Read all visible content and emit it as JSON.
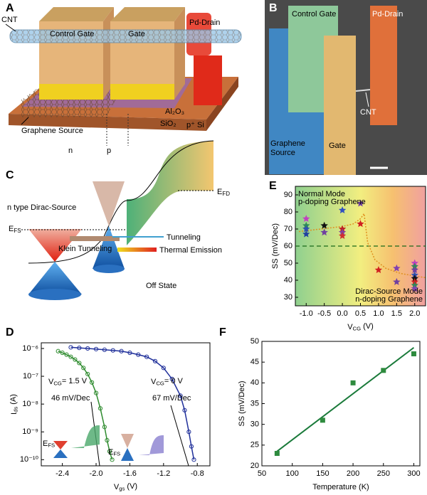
{
  "panel_letters": [
    "A",
    "B",
    "C",
    "D",
    "E",
    "F"
  ],
  "device_schematic": {
    "control_gate": "Control Gate",
    "gate": "Gate",
    "pd_drain": "Pd-Drain",
    "cnt": "CNT",
    "graphene_source": "Graphene Source",
    "al2o3": "Al₂O₃",
    "sio2": "SiO₂",
    "si": "p⁺ Si",
    "n": "n",
    "p": "p"
  },
  "sem_image": {
    "control_gate": "Control Gate",
    "pd_drain": "Pd-Drain",
    "cnt": "CNT",
    "graphene_source": [
      "Graphene",
      "Source"
    ],
    "gate": "Gate"
  },
  "band_diagram": {
    "title": "n type Dirac-Source",
    "efs": {
      "main": "E",
      "sub": "FS"
    },
    "efd": {
      "main": "E",
      "sub": "FD"
    },
    "tunneling": "Tunneling",
    "klein": "Klein Tunneling",
    "thermal": "Thermal Emission",
    "state": "Off State"
  },
  "chart_data": [
    {
      "type": "scatter",
      "log_y": true,
      "xlabel": {
        "main": "V",
        "sub": "gs",
        "rest": " (V)"
      },
      "ylabel": {
        "main": "I",
        "sub": "ds",
        "rest": " (A)"
      },
      "xlim": [
        -2.65,
        -0.65
      ],
      "xticks": [
        {
          "value": -2.4,
          "label": "-2.4"
        },
        {
          "value": -2.0,
          "label": "-2.0"
        },
        {
          "value": -1.6,
          "label": "-1.6"
        },
        {
          "value": -1.2,
          "label": "-1.2"
        },
        {
          "value": -0.8,
          "label": "-0.8"
        }
      ],
      "ylim": [
        6e-11,
        1.6e-06
      ],
      "yticks": [
        {
          "value": 1e-10,
          "label": "10⁻¹⁰"
        },
        {
          "value": 1e-09,
          "label": "10⁻⁹"
        },
        {
          "value": 1e-08,
          "label": "10⁻⁸"
        },
        {
          "value": 1e-07,
          "label": "10⁻⁷"
        },
        {
          "value": 1e-06,
          "label": "10⁻⁶"
        }
      ],
      "series": [
        {
          "color": "#2e8b2e",
          "x": [
            -2.45,
            -2.4,
            -2.35,
            -2.3,
            -2.25,
            -2.2,
            -2.15,
            -2.1,
            -2.05,
            -2.0,
            -1.95,
            -1.9,
            -1.87,
            -1.84,
            -1.81
          ],
          "values": [
            8e-07,
            7e-07,
            6e-07,
            5e-07,
            4e-07,
            3e-07,
            2e-07,
            1.2e-07,
            6e-08,
            2.5e-08,
            7e-09,
            1.5e-09,
            5e-10,
            2e-10,
            1e-10
          ]
        },
        {
          "color": "#1f2f9a",
          "x": [
            -2.3,
            -2.2,
            -2.1,
            -2.0,
            -1.9,
            -1.8,
            -1.7,
            -1.6,
            -1.5,
            -1.4,
            -1.3,
            -1.2,
            -1.1,
            -1.0,
            -0.95,
            -0.9,
            -0.87,
            -0.84
          ],
          "values": [
            1.1e-06,
            1.05e-06,
            1e-06,
            9.5e-07,
            9e-07,
            8.5e-07,
            8e-07,
            7e-07,
            6e-07,
            5e-07,
            3.5e-07,
            2e-07,
            8e-08,
            2e-08,
            6e-09,
            1e-09,
            3e-10,
            1e-10
          ]
        }
      ],
      "annotations": [
        {
          "main": "V",
          "sub": "CG",
          "rest": "= 1.5 V"
        },
        "46 mV/Dec",
        {
          "main": "V",
          "sub": "CG",
          "rest": "= 0 V"
        },
        "67 mV/Dec"
      ],
      "inset_labels": [
        {
          "main": "E",
          "sub": "FS"
        },
        {
          "main": "E",
          "sub": "FS"
        }
      ]
    },
    {
      "type": "scatter",
      "xlabel": {
        "main": "V",
        "sub": "CG",
        "rest": " (V)"
      },
      "ylabel": "SS (mV/Dec)",
      "xlim": [
        -1.3,
        2.3
      ],
      "xticks": [
        {
          "value": -1,
          "label": "-1.0"
        },
        {
          "value": -0.5,
          "label": "-0.5"
        },
        {
          "value": 0,
          "label": "0.0"
        },
        {
          "value": 0.5,
          "label": "0.5"
        },
        {
          "value": 1,
          "label": "1.0"
        },
        {
          "value": 1.5,
          "label": "1.5"
        },
        {
          "value": 2,
          "label": "2.0"
        }
      ],
      "ylim": [
        25,
        95
      ],
      "yticks": [
        30,
        40,
        50,
        60,
        70,
        80,
        90
      ],
      "points": {
        "x": [
          -1,
          -1,
          -1,
          -1,
          -0.5,
          -0.5,
          0,
          0,
          0,
          0,
          0.5,
          0.5,
          1,
          1.5,
          1.5,
          2,
          2,
          2,
          2,
          2,
          2,
          2,
          2
        ],
        "y": [
          76,
          72,
          70,
          67,
          72,
          68,
          81,
          70,
          68,
          66,
          85,
          73,
          46,
          47,
          39,
          50,
          48,
          46,
          43,
          41,
          39,
          37,
          35
        ],
        "colors": [
          "#c040c0",
          "#2e8b57",
          "#3050b0",
          "#2040a0",
          "#111111",
          "#7040a0",
          "#3050c0",
          "#c02020",
          "#8040a0",
          "#d03030",
          "#7040a0",
          "#d02020",
          "#d02020",
          "#8040b0",
          "#7040a0",
          "#c040c0",
          "#2e8b57",
          "#7040a0",
          "#3050b0",
          "#111111",
          "#d02020",
          "#2e8b57",
          "#8040b0"
        ]
      },
      "fit": {
        "x": [
          -1.2,
          -0.8,
          -0.4,
          0,
          0.3,
          0.5,
          0.6,
          0.7,
          0.9,
          1.2,
          1.6,
          2.0,
          2.3
        ],
        "y": [
          68.5,
          69.5,
          70.5,
          71.5,
          73,
          76,
          79,
          62,
          52,
          47,
          44,
          42.5,
          41.5
        ]
      },
      "hline": 60,
      "normal_mode": [
        "Normal Mode",
        "p-doping Graphene"
      ],
      "dirac_mode": [
        "Dirac-Source Mode",
        "n-doping Graphene"
      ]
    },
    {
      "type": "scatter",
      "xlabel": "Temperature (K)",
      "ylabel": "SS (mV/Dec)",
      "xlim": [
        50,
        310
      ],
      "xticks": [
        50,
        100,
        150,
        200,
        250,
        300
      ],
      "ylim": [
        20,
        50
      ],
      "yticks": [
        20,
        25,
        30,
        35,
        40,
        45,
        50
      ],
      "color": "#2e8b3e",
      "x": [
        75,
        150,
        200,
        250,
        300
      ],
      "values": [
        23,
        31,
        40,
        43,
        47
      ],
      "fit": {
        "x": [
          75,
          300
        ],
        "y": [
          23.5,
          48.5
        ]
      }
    }
  ]
}
